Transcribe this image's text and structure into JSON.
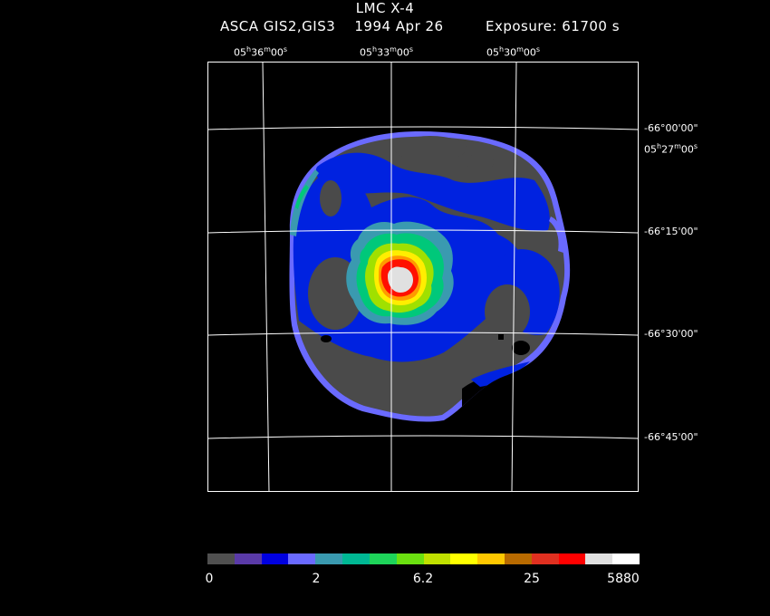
{
  "header": {
    "title": "LMC X-4",
    "subtitle": "ASCA GIS2,GIS3    1994 Apr 26",
    "exposure": "Exposure: 61700 s"
  },
  "ra_labels": [
    {
      "h": "05",
      "m": "36",
      "s": "00"
    },
    {
      "h": "05",
      "m": "33",
      "s": "00"
    },
    {
      "h": "05",
      "m": "30",
      "s": "00"
    },
    {
      "h": "05",
      "m": "27",
      "s": "00"
    }
  ],
  "dec_labels": [
    "-66°00'00\"",
    "-66°15'00\"",
    "-66°30'00\"",
    "-66°45'00\""
  ],
  "colorbar": {
    "colors": [
      "#505050",
      "#5a3aa8",
      "#0000e0",
      "#6a6aff",
      "#3a9ab0",
      "#00b894",
      "#1ed45a",
      "#6be010",
      "#c0e000",
      "#ffff00",
      "#ffc800",
      "#b86a00",
      "#e03020",
      "#ff0000",
      "#e0e0e0",
      "#ffffff"
    ],
    "ticks": [
      "0",
      "2",
      "6.2",
      "25",
      "5880"
    ]
  },
  "image_colors": {
    "background": "#4a4a4a",
    "blue": "#0022e0",
    "rim": "#6a6aff",
    "cyan": "#3a9ab0",
    "green": "#00c87a",
    "lime": "#a0e000",
    "yellow": "#ffee00",
    "orange": "#ff9a00",
    "red": "#ff1000",
    "core": "#e0e0e0"
  }
}
